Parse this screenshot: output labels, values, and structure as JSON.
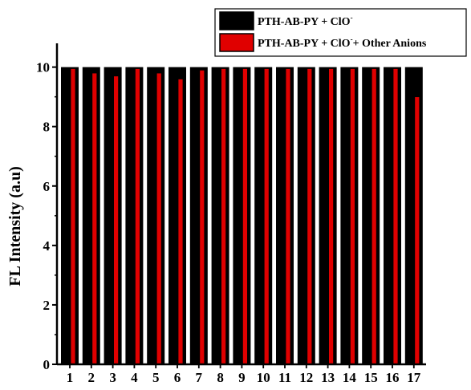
{
  "chart_data": {
    "type": "bar",
    "title": "",
    "xlabel": "",
    "ylabel": "FL Intensity (a.u)",
    "ylim": [
      0,
      10.8
    ],
    "yticks": [
      0,
      2,
      4,
      6,
      8,
      10
    ],
    "categories": [
      "1",
      "2",
      "3",
      "4",
      "5",
      "6",
      "7",
      "8",
      "9",
      "10",
      "11",
      "12",
      "13",
      "14",
      "15",
      "16",
      "17"
    ],
    "series": [
      {
        "color": "#000000",
        "values": [
          10,
          10,
          10,
          10,
          10,
          10,
          10,
          10,
          10,
          10,
          10,
          10,
          10,
          10,
          10,
          10,
          10
        ]
      },
      {
        "color": "#e00000",
        "values": [
          9.95,
          9.8,
          9.7,
          9.95,
          9.8,
          9.6,
          9.9,
          9.95,
          9.95,
          9.95,
          9.95,
          9.95,
          9.95,
          9.95,
          9.95,
          9.95,
          9.0
        ]
      }
    ],
    "legend": {
      "placement": "top-right",
      "entries": [
        {
          "main": "PTH-AB-PY + ClO",
          "sup": "-",
          "tail": ""
        },
        {
          "main": "PTH-AB-PY + ClO",
          "sup": "-",
          "tail": "+ Other Anions"
        }
      ]
    },
    "grid": false
  }
}
